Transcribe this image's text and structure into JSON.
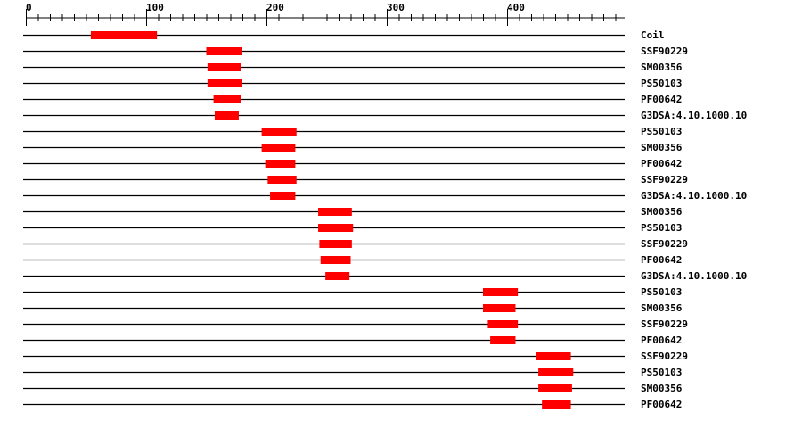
{
  "chart_data": {
    "type": "range-bar",
    "xlim": [
      0,
      498
    ],
    "x_ticks": [
      0,
      100,
      200,
      300,
      400
    ],
    "minor_tick_step": 10,
    "bar_color": "#ff0000",
    "rows": [
      {
        "label": "Coil",
        "start": 54,
        "end": 109
      },
      {
        "label": "SSF90229",
        "start": 150,
        "end": 180
      },
      {
        "label": "SM00356",
        "start": 151,
        "end": 179
      },
      {
        "label": "PS50103",
        "start": 151,
        "end": 180
      },
      {
        "label": "PF00642",
        "start": 156,
        "end": 179
      },
      {
        "label": "G3DSA:4.10.1000.10",
        "start": 157,
        "end": 177
      },
      {
        "label": "PS50103",
        "start": 196,
        "end": 225
      },
      {
        "label": "SM00356",
        "start": 196,
        "end": 224
      },
      {
        "label": "PF00642",
        "start": 199,
        "end": 224
      },
      {
        "label": "SSF90229",
        "start": 201,
        "end": 225
      },
      {
        "label": "G3DSA:4.10.1000.10",
        "start": 203,
        "end": 224
      },
      {
        "label": "SM00356",
        "start": 243,
        "end": 271
      },
      {
        "label": "PS50103",
        "start": 243,
        "end": 272
      },
      {
        "label": "SSF90229",
        "start": 244,
        "end": 271
      },
      {
        "label": "PF00642",
        "start": 245,
        "end": 270
      },
      {
        "label": "G3DSA:4.10.1000.10",
        "start": 249,
        "end": 269
      },
      {
        "label": "PS50103",
        "start": 380,
        "end": 409
      },
      {
        "label": "SM00356",
        "start": 380,
        "end": 407
      },
      {
        "label": "SSF90229",
        "start": 384,
        "end": 409
      },
      {
        "label": "PF00642",
        "start": 386,
        "end": 407
      },
      {
        "label": "SSF90229",
        "start": 424,
        "end": 453
      },
      {
        "label": "PS50103",
        "start": 426,
        "end": 455
      },
      {
        "label": "SM00356",
        "start": 426,
        "end": 454
      },
      {
        "label": "PF00642",
        "start": 429,
        "end": 453
      }
    ]
  }
}
